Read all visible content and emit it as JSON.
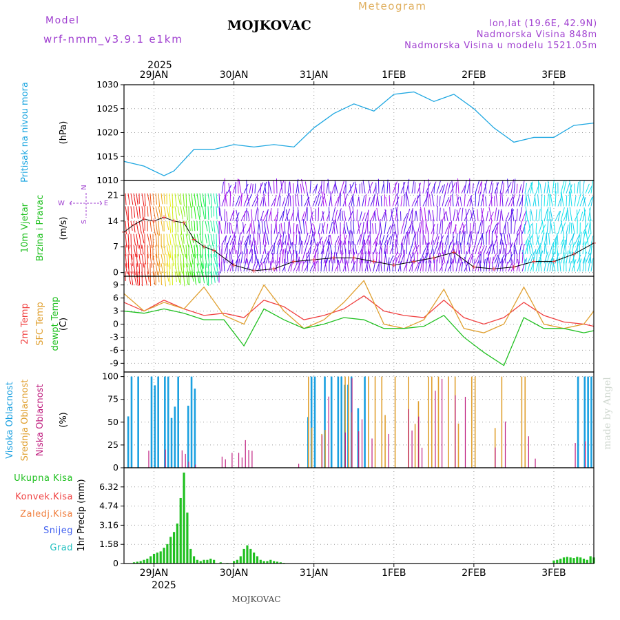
{
  "header": {
    "model_label": "Model",
    "model_name": "wrf-nmm_v3.9.1 e1km",
    "title": "MOJKOVAC",
    "subtitle": "Meteogram",
    "lonlat": "lon,lat (19.6E, 42.9N)",
    "altitude": "Nadmorska Visina 848m",
    "model_altitude": "Nadmorska Visina u modelu 1521.05m",
    "footer": "MOJKOVAC",
    "credit": "made by Angel",
    "year": "2025"
  },
  "colors": {
    "pressure": "#1ea7e1",
    "temp2m": "#f04040",
    "sfc": "#e0a030",
    "dewpt": "#20c020",
    "high_cloud": "#1aa0e0",
    "mid_cloud": "#e0a030",
    "low_cloud": "#c02080",
    "precip": "#20c020",
    "conv": "#f04040",
    "snow": "#4060f0",
    "grad": "#20c0c0",
    "purple": "#a040d0"
  },
  "chart_data": {
    "type": "meteogram",
    "x_axis": {
      "start": "2025-01-28T15:00",
      "end": "2025-02-03T12:00",
      "ticks": [
        "29JAN",
        "30JAN",
        "31JAN",
        "1FEB",
        "2FEB",
        "3FEB"
      ],
      "tick_times": [
        "2025-01-29T00:00",
        "2025-01-30T00:00",
        "2025-01-31T00:00",
        "2025-02-01T00:00",
        "2025-02-02T00:00",
        "2025-02-03T00:00"
      ]
    },
    "panels": [
      {
        "id": "pressure",
        "ylabel_lines": [
          "Pritisak na nivou mora"
        ],
        "unit": "(hPa)",
        "ylim": [
          1010,
          1030
        ],
        "yticks": [
          "1010",
          "1015",
          "1020",
          "1025",
          "1030"
        ],
        "series": [
          {
            "times": [
              "2025-01-28T15:00",
              "2025-01-28T21:00",
              "2025-01-29T03:00",
              "2025-01-29T06:00",
              "2025-01-29T12:00",
              "2025-01-29T18:00",
              "2025-01-30T00:00",
              "2025-01-30T06:00",
              "2025-01-30T12:00",
              "2025-01-30T18:00",
              "2025-01-31T00:00",
              "2025-01-31T06:00",
              "2025-01-31T12:00",
              "2025-01-31T18:00",
              "2025-02-01T00:00",
              "2025-02-01T06:00",
              "2025-02-01T12:00",
              "2025-02-01T18:00",
              "2025-02-02T00:00",
              "2025-02-02T06:00",
              "2025-02-02T12:00",
              "2025-02-02T18:00",
              "2025-02-03T00:00",
              "2025-02-03T06:00",
              "2025-02-03T12:00"
            ],
            "values": [
              1014,
              1013,
              1011,
              1012,
              1016.5,
              1016.5,
              1017.5,
              1017,
              1017.5,
              1017,
              1021,
              1024,
              1026,
              1024.5,
              1028,
              1028.5,
              1026.5,
              1028,
              1025,
              1021,
              1018,
              1019,
              1019,
              1021.5,
              1022
            ]
          }
        ]
      },
      {
        "id": "wind",
        "ylabel_lines": [
          "10m Vjetar",
          "Brzina i Pravac"
        ],
        "unit": "(m/s)",
        "ylim": [
          -1,
          25
        ],
        "yticks": [
          "0",
          "7",
          "14",
          "21"
        ],
        "direction_legend": [
          "N",
          "E",
          "S",
          "W"
        ],
        "series": [
          {
            "name": "speed",
            "times": [
              "2025-01-28T15:00",
              "2025-01-28T18:00",
              "2025-01-28T21:00",
              "2025-01-29T00:00",
              "2025-01-29T03:00",
              "2025-01-29T06:00",
              "2025-01-29T09:00",
              "2025-01-29T12:00",
              "2025-01-29T15:00",
              "2025-01-29T18:00",
              "2025-01-30T00:00",
              "2025-01-30T06:00",
              "2025-01-30T12:00",
              "2025-01-30T18:00",
              "2025-01-31T00:00",
              "2025-01-31T06:00",
              "2025-01-31T12:00",
              "2025-01-31T18:00",
              "2025-02-01T00:00",
              "2025-02-01T06:00",
              "2025-02-01T12:00",
              "2025-02-01T18:00",
              "2025-02-02T00:00",
              "2025-02-02T06:00",
              "2025-02-02T12:00",
              "2025-02-02T18:00",
              "2025-02-03T00:00",
              "2025-02-03T06:00",
              "2025-02-03T12:00"
            ],
            "values": [
              11,
              13,
              14.5,
              14,
              15,
              14,
              13.5,
              9,
              7,
              6,
              2,
              0.5,
              1,
              3,
              3.5,
              4,
              4,
              3,
              2,
              3,
              4,
              5.5,
              1.5,
              1,
              1.5,
              3,
              3,
              5,
              8
            ]
          }
        ]
      },
      {
        "id": "temperature",
        "ylabel_lines": [
          "2m Temp",
          "SFC Temp",
          "dewpt Temp"
        ],
        "unit": "(C)",
        "ylim": [
          -11,
          11
        ],
        "yticks": [
          "9",
          "6",
          "3",
          "0",
          "-3",
          "-6",
          "-9"
        ],
        "times": [
          "2025-01-28T15:00",
          "2025-01-28T21:00",
          "2025-01-29T03:00",
          "2025-01-29T09:00",
          "2025-01-29T15:00",
          "2025-01-29T21:00",
          "2025-01-30T03:00",
          "2025-01-30T09:00",
          "2025-01-30T15:00",
          "2025-01-30T21:00",
          "2025-01-31T03:00",
          "2025-01-31T09:00",
          "2025-01-31T15:00",
          "2025-01-31T21:00",
          "2025-02-01T03:00",
          "2025-02-01T09:00",
          "2025-02-01T15:00",
          "2025-02-01T21:00",
          "2025-02-02T03:00",
          "2025-02-02T09:00",
          "2025-02-02T15:00",
          "2025-02-02T21:00",
          "2025-02-03T03:00",
          "2025-02-03T09:00",
          "2025-02-03T12:00"
        ],
        "series": [
          {
            "name": "2m Temp",
            "values": [
              5,
              3,
              5.5,
              3.5,
              2,
              2.5,
              1.5,
              5.5,
              4,
              1,
              2,
              3.5,
              6.5,
              3,
              2,
              1.5,
              5.5,
              1.5,
              0,
              1.5,
              5,
              2,
              0.5,
              0,
              -0.5
            ]
          },
          {
            "name": "SFC Temp",
            "values": [
              7,
              3,
              5,
              3.5,
              8.5,
              2,
              0,
              9,
              3,
              -1,
              1,
              5,
              10,
              0,
              -1,
              1,
              8,
              -1,
              -2,
              0,
              8.5,
              0,
              -1,
              0,
              3
            ]
          },
          {
            "name": "dewpt Temp",
            "values": [
              3,
              2.5,
              3.5,
              2.5,
              1,
              1,
              -5,
              3.5,
              1,
              -1,
              0,
              1.5,
              1,
              -1,
              -1,
              -0.5,
              2,
              -3,
              -6.5,
              -9.5,
              1.5,
              -1,
              -1,
              -2,
              -1.5
            ]
          }
        ]
      },
      {
        "id": "clouds",
        "ylabel_lines": [
          "Visoka Oblacnost",
          "Srednja Oblacnost",
          "Niska Oblacnost"
        ],
        "unit": "(%)",
        "ylim": [
          0,
          105
        ],
        "yticks": [
          "0",
          "25",
          "50",
          "75",
          "100"
        ]
      },
      {
        "id": "precip",
        "ylabel_lines": [
          "1hr Precip (mm)"
        ],
        "unit": "",
        "ylim": [
          0,
          7.9
        ],
        "yticks": [
          "0",
          "1.58",
          "3.16",
          "4.74",
          "6.32"
        ],
        "legend": [
          "Ukupna Kisa",
          "Konvek.Kisa",
          "Zaledj.Kisa",
          "Snijeg",
          "Grad"
        ],
        "series": [
          {
            "name": "Ukupna Kisa",
            "times": [
              "2025-01-28T18:00",
              "2025-01-28T19:00",
              "2025-01-28T20:00",
              "2025-01-28T21:00",
              "2025-01-28T22:00",
              "2025-01-28T23:00",
              "2025-01-29T00:00",
              "2025-01-29T01:00",
              "2025-01-29T02:00",
              "2025-01-29T03:00",
              "2025-01-29T04:00",
              "2025-01-29T05:00",
              "2025-01-29T06:00",
              "2025-01-29T07:00",
              "2025-01-29T08:00",
              "2025-01-29T09:00",
              "2025-01-29T10:00",
              "2025-01-29T11:00",
              "2025-01-29T12:00",
              "2025-01-29T13:00",
              "2025-01-29T14:00",
              "2025-01-29T15:00",
              "2025-01-29T16:00",
              "2025-01-29T17:00",
              "2025-01-29T18:00",
              "2025-01-29T20:00",
              "2025-01-29T22:00",
              "2025-01-30T00:00",
              "2025-01-30T01:00",
              "2025-01-30T02:00",
              "2025-01-30T03:00",
              "2025-01-30T04:00",
              "2025-01-30T05:00",
              "2025-01-30T06:00",
              "2025-01-30T07:00",
              "2025-01-30T08:00",
              "2025-01-30T09:00",
              "2025-01-30T10:00",
              "2025-01-30T11:00",
              "2025-01-30T12:00",
              "2025-01-30T13:00",
              "2025-01-30T14:00",
              "2025-01-30T15:00",
              "2025-02-03T00:00",
              "2025-02-03T01:00",
              "2025-02-03T02:00",
              "2025-02-03T03:00",
              "2025-02-03T04:00",
              "2025-02-03T05:00",
              "2025-02-03T06:00",
              "2025-02-03T07:00",
              "2025-02-03T08:00",
              "2025-02-03T09:00",
              "2025-02-03T10:00",
              "2025-02-03T11:00",
              "2025-02-03T12:00"
            ],
            "values": [
              0.1,
              0.15,
              0.2,
              0.3,
              0.4,
              0.6,
              0.8,
              0.9,
              1.0,
              1.3,
              1.6,
              2.2,
              2.6,
              3.3,
              5.4,
              7.5,
              4.2,
              1.2,
              0.6,
              0.3,
              0.2,
              0.3,
              0.3,
              0.4,
              0.3,
              0.1,
              0.05,
              0.2,
              0.3,
              0.6,
              1.2,
              1.5,
              1.2,
              0.9,
              0.6,
              0.3,
              0.2,
              0.2,
              0.3,
              0.2,
              0.15,
              0.1,
              0.05,
              0.25,
              0.3,
              0.4,
              0.5,
              0.55,
              0.5,
              0.45,
              0.55,
              0.5,
              0.4,
              0.3,
              0.6,
              0.5
            ]
          }
        ]
      }
    ]
  }
}
